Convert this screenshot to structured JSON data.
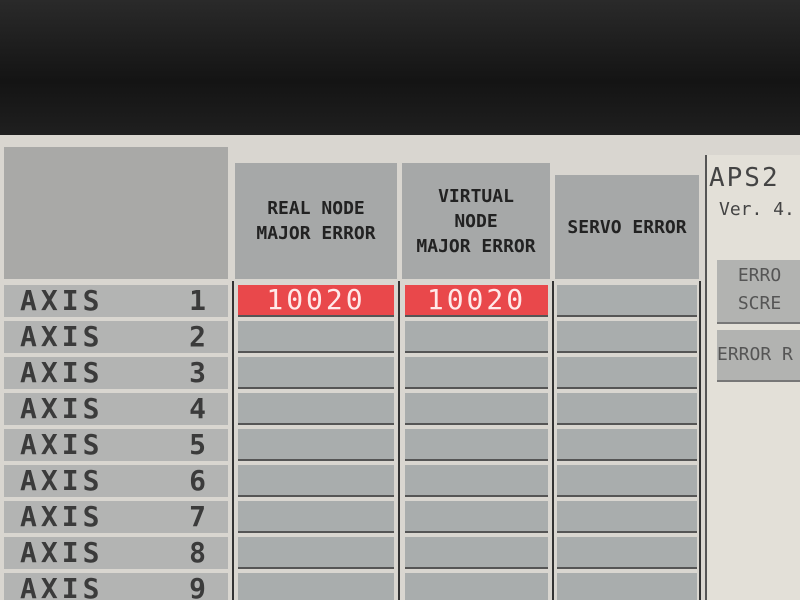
{
  "header": {
    "col1": [
      "REAL NODE",
      "MAJOR ERROR"
    ],
    "col2": [
      "VIRTUAL",
      "NODE",
      "MAJOR ERROR"
    ],
    "col3": [
      "SERVO ERROR"
    ]
  },
  "rows": [
    {
      "label": "AXIS",
      "num": "1",
      "real": "10020",
      "virtual": "10020",
      "servo": ""
    },
    {
      "label": "AXIS",
      "num": "2",
      "real": "",
      "virtual": "",
      "servo": ""
    },
    {
      "label": "AXIS",
      "num": "3",
      "real": "",
      "virtual": "",
      "servo": ""
    },
    {
      "label": "AXIS",
      "num": "4",
      "real": "",
      "virtual": "",
      "servo": ""
    },
    {
      "label": "AXIS",
      "num": "5",
      "real": "",
      "virtual": "",
      "servo": ""
    },
    {
      "label": "AXIS",
      "num": "6",
      "real": "",
      "virtual": "",
      "servo": ""
    },
    {
      "label": "AXIS",
      "num": "7",
      "real": "",
      "virtual": "",
      "servo": ""
    },
    {
      "label": "AXIS",
      "num": "8",
      "real": "",
      "virtual": "",
      "servo": ""
    },
    {
      "label": "AXIS",
      "num": "9",
      "real": "",
      "virtual": "",
      "servo": ""
    }
  ],
  "side": {
    "title": "APS2",
    "version": "Ver. 4.",
    "error_screen": [
      "ERRO",
      "SCRE"
    ],
    "error_reset": "ERROR R"
  },
  "colors": {
    "error_cell": "#e9484b",
    "header": "#a6a8a8",
    "screen": "#d9d6d0"
  }
}
